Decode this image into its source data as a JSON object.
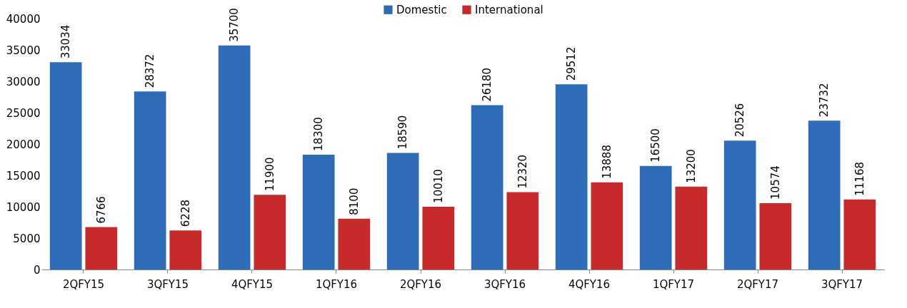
{
  "chart_data": {
    "type": "bar",
    "categories": [
      "2QFY15",
      "3QFY15",
      "4QFY15",
      "1QFY16",
      "2QFY16",
      "3QFY16",
      "4QFY16",
      "1QFY17",
      "2QFY17",
      "3QFY17"
    ],
    "series": [
      {
        "name": "Domestic",
        "color": "#2f6cb8",
        "values": [
          33034,
          28372,
          35700,
          18300,
          18590,
          26180,
          29512,
          16500,
          20526,
          23732
        ]
      },
      {
        "name": "International",
        "color": "#c62a2a",
        "values": [
          6766,
          6228,
          11900,
          8100,
          10010,
          12320,
          13888,
          13200,
          10574,
          11168
        ]
      }
    ],
    "ylim": [
      0,
      40000
    ],
    "yticks": [
      0,
      5000,
      10000,
      15000,
      20000,
      25000,
      30000,
      35000,
      40000
    ],
    "grid": false,
    "legend": "top",
    "data_labels": true
  }
}
